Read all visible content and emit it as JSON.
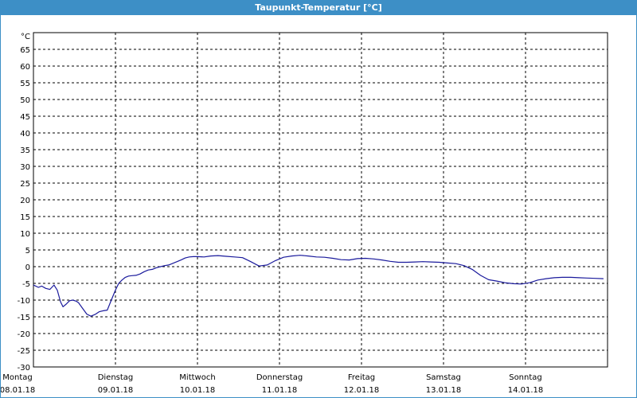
{
  "window": {
    "title": "Taupunkt-Temperatur [°C]"
  },
  "chart_data": {
    "type": "line",
    "title": "Taupunkt-Temperatur [°C]",
    "ylabel": "°C",
    "xlabel": "",
    "ylim": [
      -30,
      70
    ],
    "yticks": [
      65,
      60,
      55,
      50,
      45,
      40,
      35,
      30,
      25,
      20,
      15,
      10,
      5,
      0,
      -5,
      -10,
      -15,
      -20,
      -25,
      -30
    ],
    "grid": true,
    "grid_style": "dashed",
    "xlim": [
      0,
      7
    ],
    "day_labels": [
      {
        "weekday": "Montag",
        "date": "08.01.18"
      },
      {
        "weekday": "Dienstag",
        "date": "09.01.18"
      },
      {
        "weekday": "Mittwoch",
        "date": "10.01.18"
      },
      {
        "weekday": "Donnerstag",
        "date": "11.01.18"
      },
      {
        "weekday": "Freitag",
        "date": "12.01.18"
      },
      {
        "weekday": "Samstag",
        "date": "13.01.18"
      },
      {
        "weekday": "Sonntag",
        "date": "14.01.18"
      }
    ],
    "series": [
      {
        "color": "#1a1a9c",
        "x": [
          0.0,
          0.06,
          0.1,
          0.15,
          0.2,
          0.25,
          0.29,
          0.33,
          0.36,
          0.4,
          0.44,
          0.48,
          0.52,
          0.55,
          0.6,
          0.65,
          0.7,
          0.75,
          0.8,
          0.85,
          0.9,
          0.95,
          1.0,
          1.04,
          1.08,
          1.12,
          1.16,
          1.2,
          1.25,
          1.3,
          1.35,
          1.4,
          1.45,
          1.5,
          1.55,
          1.6,
          1.65,
          1.7,
          1.75,
          1.8,
          1.85,
          1.9,
          1.95,
          2.0,
          2.08,
          2.16,
          2.25,
          2.35,
          2.45,
          2.55,
          2.65,
          2.75,
          2.85,
          2.95,
          3.05,
          3.15,
          3.25,
          3.35,
          3.45,
          3.55,
          3.65,
          3.75,
          3.85,
          3.95,
          4.05,
          4.15,
          4.25,
          4.35,
          4.45,
          4.55,
          4.65,
          4.75,
          4.85,
          4.95,
          5.05,
          5.15,
          5.25,
          5.35,
          5.45,
          5.55,
          5.65,
          5.75,
          5.85,
          5.95,
          6.05,
          6.15,
          6.25,
          6.35,
          6.45,
          6.55,
          6.65,
          6.75,
          6.85,
          6.95
        ],
        "values": [
          -5.5,
          -6.2,
          -5.8,
          -6.5,
          -6.8,
          -5.5,
          -7.0,
          -10.5,
          -12.0,
          -11.2,
          -10.2,
          -10.0,
          -10.3,
          -10.8,
          -12.5,
          -14.2,
          -14.8,
          -14.3,
          -13.5,
          -13.2,
          -13.0,
          -10.0,
          -7.0,
          -5.0,
          -4.0,
          -3.2,
          -2.8,
          -2.7,
          -2.6,
          -2.2,
          -1.5,
          -1.0,
          -0.8,
          -0.3,
          0.0,
          0.3,
          0.5,
          1.0,
          1.5,
          2.0,
          2.6,
          2.9,
          3.0,
          3.0,
          2.9,
          3.2,
          3.3,
          3.1,
          2.9,
          2.7,
          1.5,
          0.2,
          0.5,
          1.8,
          2.8,
          3.2,
          3.4,
          3.2,
          2.9,
          2.8,
          2.5,
          2.1,
          2.0,
          2.4,
          2.5,
          2.3,
          2.0,
          1.6,
          1.3,
          1.3,
          1.4,
          1.5,
          1.4,
          1.3,
          1.1,
          0.9,
          0.3,
          -0.8,
          -2.6,
          -3.9,
          -4.3,
          -4.8,
          -5.1,
          -5.2,
          -4.8,
          -4.0,
          -3.6,
          -3.3,
          -3.2,
          -3.2,
          -3.3,
          -3.4,
          -3.5,
          -3.6
        ]
      }
    ]
  }
}
